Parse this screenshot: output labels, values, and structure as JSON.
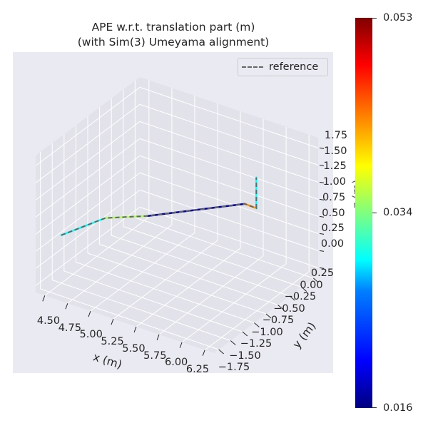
{
  "chart_data": {
    "type": "line",
    "projection": "3d",
    "title": "APE w.r.t. translation part (m)",
    "subtitle": "(with Sim(3) Umeyama alignment)",
    "xlabel": "x (m)",
    "ylabel": "y (m)",
    "zlabel": "z (m)",
    "xlim": [
      4.4,
      6.35
    ],
    "ylim": [
      -1.85,
      0.35
    ],
    "zlim": [
      -0.1,
      1.9
    ],
    "xticks": [
      "4.50",
      "4.75",
      "5.00",
      "5.25",
      "5.50",
      "5.75",
      "6.00",
      "6.25"
    ],
    "yticks": [
      "−1.75",
      "−1.50",
      "−1.25",
      "−1.00",
      "−0.75",
      "−0.50",
      "−0.25",
      "0.00",
      "0.25"
    ],
    "zticks": [
      "0.00",
      "0.25",
      "0.50",
      "0.75",
      "1.00",
      "1.25",
      "1.50",
      "1.75"
    ],
    "grid": true,
    "legend": {
      "entries": [
        "reference"
      ],
      "placement": "top-right"
    },
    "trajectory": {
      "x": [
        4.5,
        4.66,
        4.96,
        5.57,
        5.7,
        5.7
      ],
      "y": [
        -1.5,
        -0.88,
        -0.56,
        0.31,
        0.3,
        0.3
      ],
      "z": [
        0.6,
        0.6,
        0.6,
        0.6,
        0.6,
        1.05
      ],
      "segment_error": [
        0.03,
        0.036,
        0.017,
        0.043,
        0.03
      ]
    },
    "colorbar": {
      "colormap": "jet",
      "min": 0.016,
      "mid": 0.034,
      "max": 0.053,
      "tick_labels": [
        "0.053",
        "0.034",
        "0.016"
      ]
    },
    "colors": {
      "reference": "#666666",
      "pane": "#e2e2ea",
      "background": "#eaeaf2"
    }
  }
}
